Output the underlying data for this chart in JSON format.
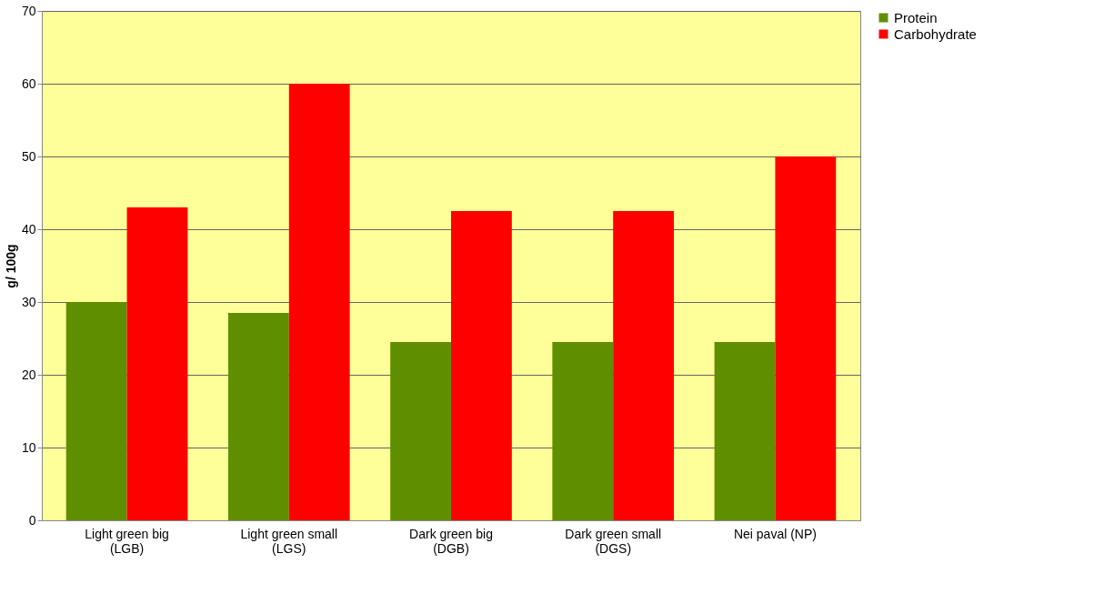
{
  "chart_data": {
    "type": "bar",
    "ylabel": "g/ 100g",
    "categories": [
      "Light green big\n(LGB)",
      "Light green small\n(LGS)",
      "Dark green big\n(DGB)",
      "Dark green small\n(DGS)",
      "Nei paval (NP)"
    ],
    "series": [
      {
        "name": "Protein",
        "color": "#5f8f00",
        "values": [
          30,
          28.5,
          24.5,
          24.5,
          24.5
        ]
      },
      {
        "name": "Carbohydrate",
        "color": "#ff0000",
        "values": [
          43,
          60,
          42.5,
          42.5,
          50
        ]
      }
    ],
    "ylim": [
      0,
      70
    ],
    "yticks": [
      0,
      10,
      20,
      30,
      40,
      50,
      60,
      70
    ],
    "grid": "y",
    "legend": "right"
  }
}
